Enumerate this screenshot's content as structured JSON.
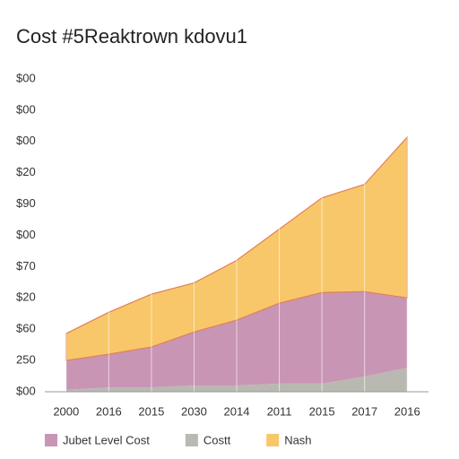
{
  "chart_data": {
    "type": "stacked_area",
    "title": "Cost #5Reaktrown kdovu1",
    "categories": [
      "2000",
      "2016",
      "2015",
      "2030",
      "2014",
      "2011",
      "2015",
      "2017",
      "2016"
    ],
    "series": [
      {
        "name": "Costt",
        "color": "#b9b9b2",
        "values": [
          0.06,
          0.14,
          0.14,
          0.2,
          0.2,
          0.26,
          0.26,
          0.49,
          0.77
        ]
      },
      {
        "name": "Jubet Level Cost",
        "color": "#c995b4",
        "values": [
          0.94,
          1.06,
          1.29,
          1.71,
          2.09,
          2.57,
          2.91,
          2.71,
          2.23
        ]
      },
      {
        "name": "Nash",
        "color": "#f8c76a",
        "values": [
          0.86,
          1.34,
          1.69,
          1.57,
          1.91,
          2.37,
          3.03,
          3.43,
          5.14
        ]
      }
    ],
    "legend_order": [
      1,
      0,
      2
    ],
    "ylim": [
      0,
      10
    ],
    "yticks": [
      {
        "value": 0,
        "label": "$00"
      },
      {
        "value": 1,
        "label": "250"
      },
      {
        "value": 2,
        "label": "$60"
      },
      {
        "value": 3,
        "label": "$20"
      },
      {
        "value": 4,
        "label": "$70"
      },
      {
        "value": 5,
        "label": "$00"
      },
      {
        "value": 6,
        "label": "$90"
      },
      {
        "value": 7,
        "label": "$20"
      },
      {
        "value": 8,
        "label": "$00"
      },
      {
        "value": 9,
        "label": "$00"
      },
      {
        "value": 10,
        "label": "$00"
      }
    ],
    "grid": false
  }
}
